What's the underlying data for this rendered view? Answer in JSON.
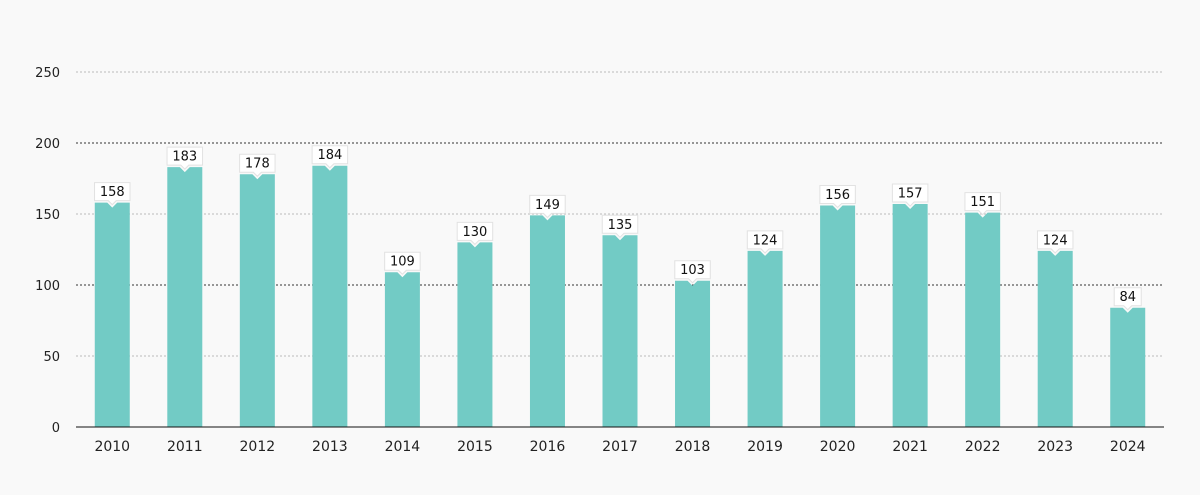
{
  "chart_data": {
    "type": "bar",
    "categories": [
      "2010",
      "2011",
      "2012",
      "2013",
      "2014",
      "2015",
      "2016",
      "2017",
      "2018",
      "2019",
      "2020",
      "2021",
      "2022",
      "2023",
      "2024"
    ],
    "values": [
      158,
      183,
      178,
      184,
      109,
      130,
      149,
      135,
      103,
      124,
      156,
      157,
      151,
      124,
      84
    ],
    "data_labels": [
      "158",
      "183",
      "178",
      "184",
      "109",
      "130",
      "149",
      "135",
      "103",
      "124",
      "156",
      "157",
      "151",
      "124",
      "84"
    ],
    "yticks": [
      "0",
      "50",
      "100",
      "150",
      "200",
      "250"
    ],
    "ylim": [
      0,
      250
    ],
    "grid": true,
    "bar_color": "#72cbc5",
    "title": "",
    "xlabel": "",
    "ylabel": ""
  }
}
